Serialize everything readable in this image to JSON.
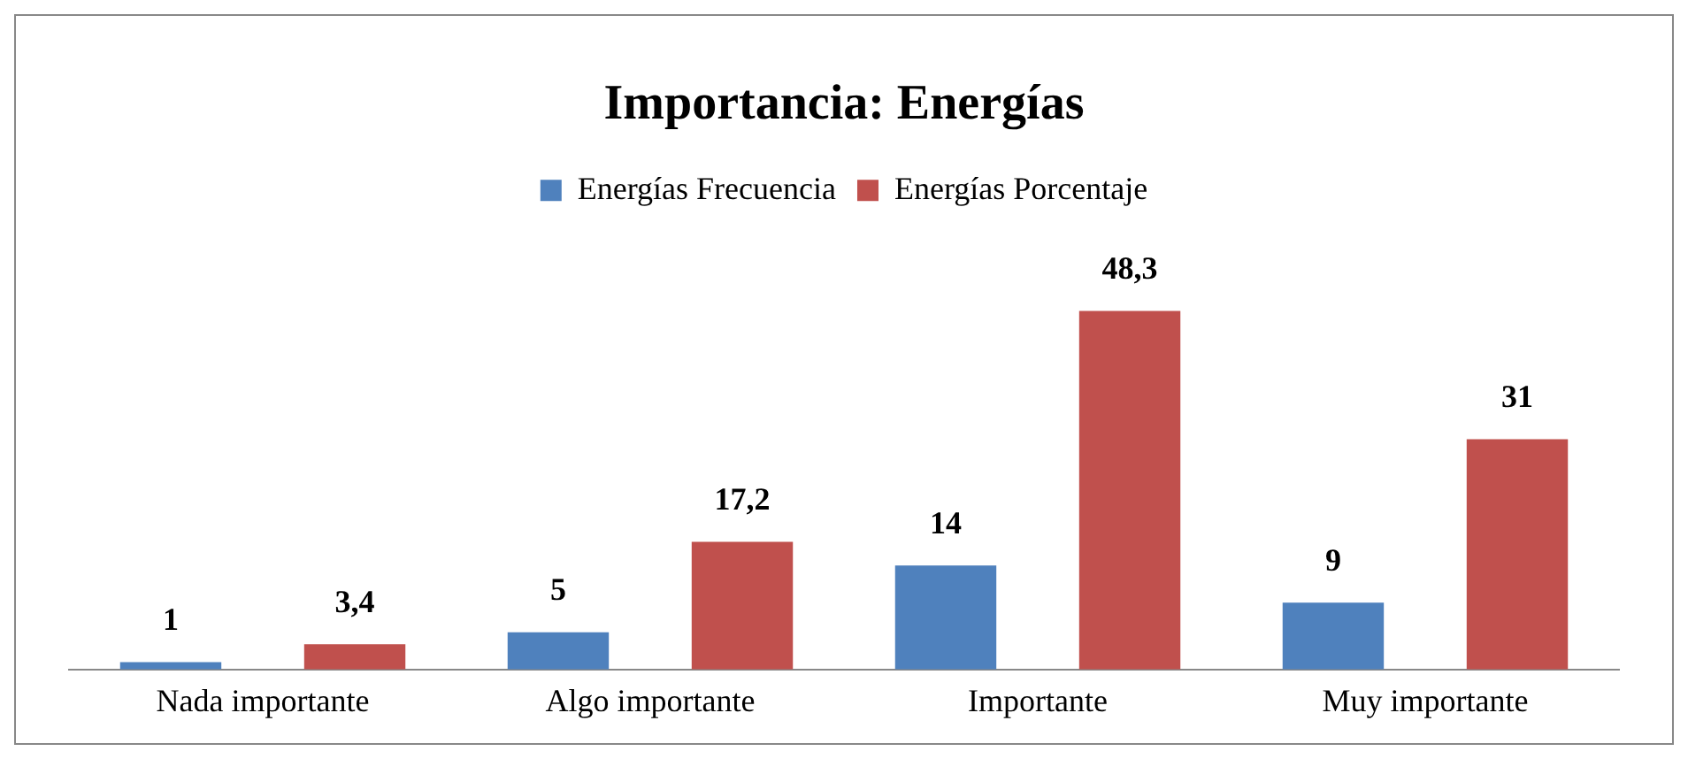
{
  "chart_data": {
    "type": "bar",
    "title": "Importancia: Energías",
    "categories": [
      "Nada importante",
      "Algo importante",
      "Importante",
      "Muy importante"
    ],
    "series": [
      {
        "name": "Energías Frecuencia",
        "color": "#4f81bd",
        "values": [
          1,
          5,
          14,
          9
        ],
        "value_labels": [
          "1",
          "5",
          "14",
          "9"
        ]
      },
      {
        "name": "Energías Porcentaje",
        "color": "#c0504d",
        "values": [
          3.4,
          17.2,
          48.3,
          31
        ],
        "value_labels": [
          "3,4",
          "17,2",
          "48,3",
          "31"
        ]
      }
    ],
    "legend": "top",
    "grid": false
  }
}
